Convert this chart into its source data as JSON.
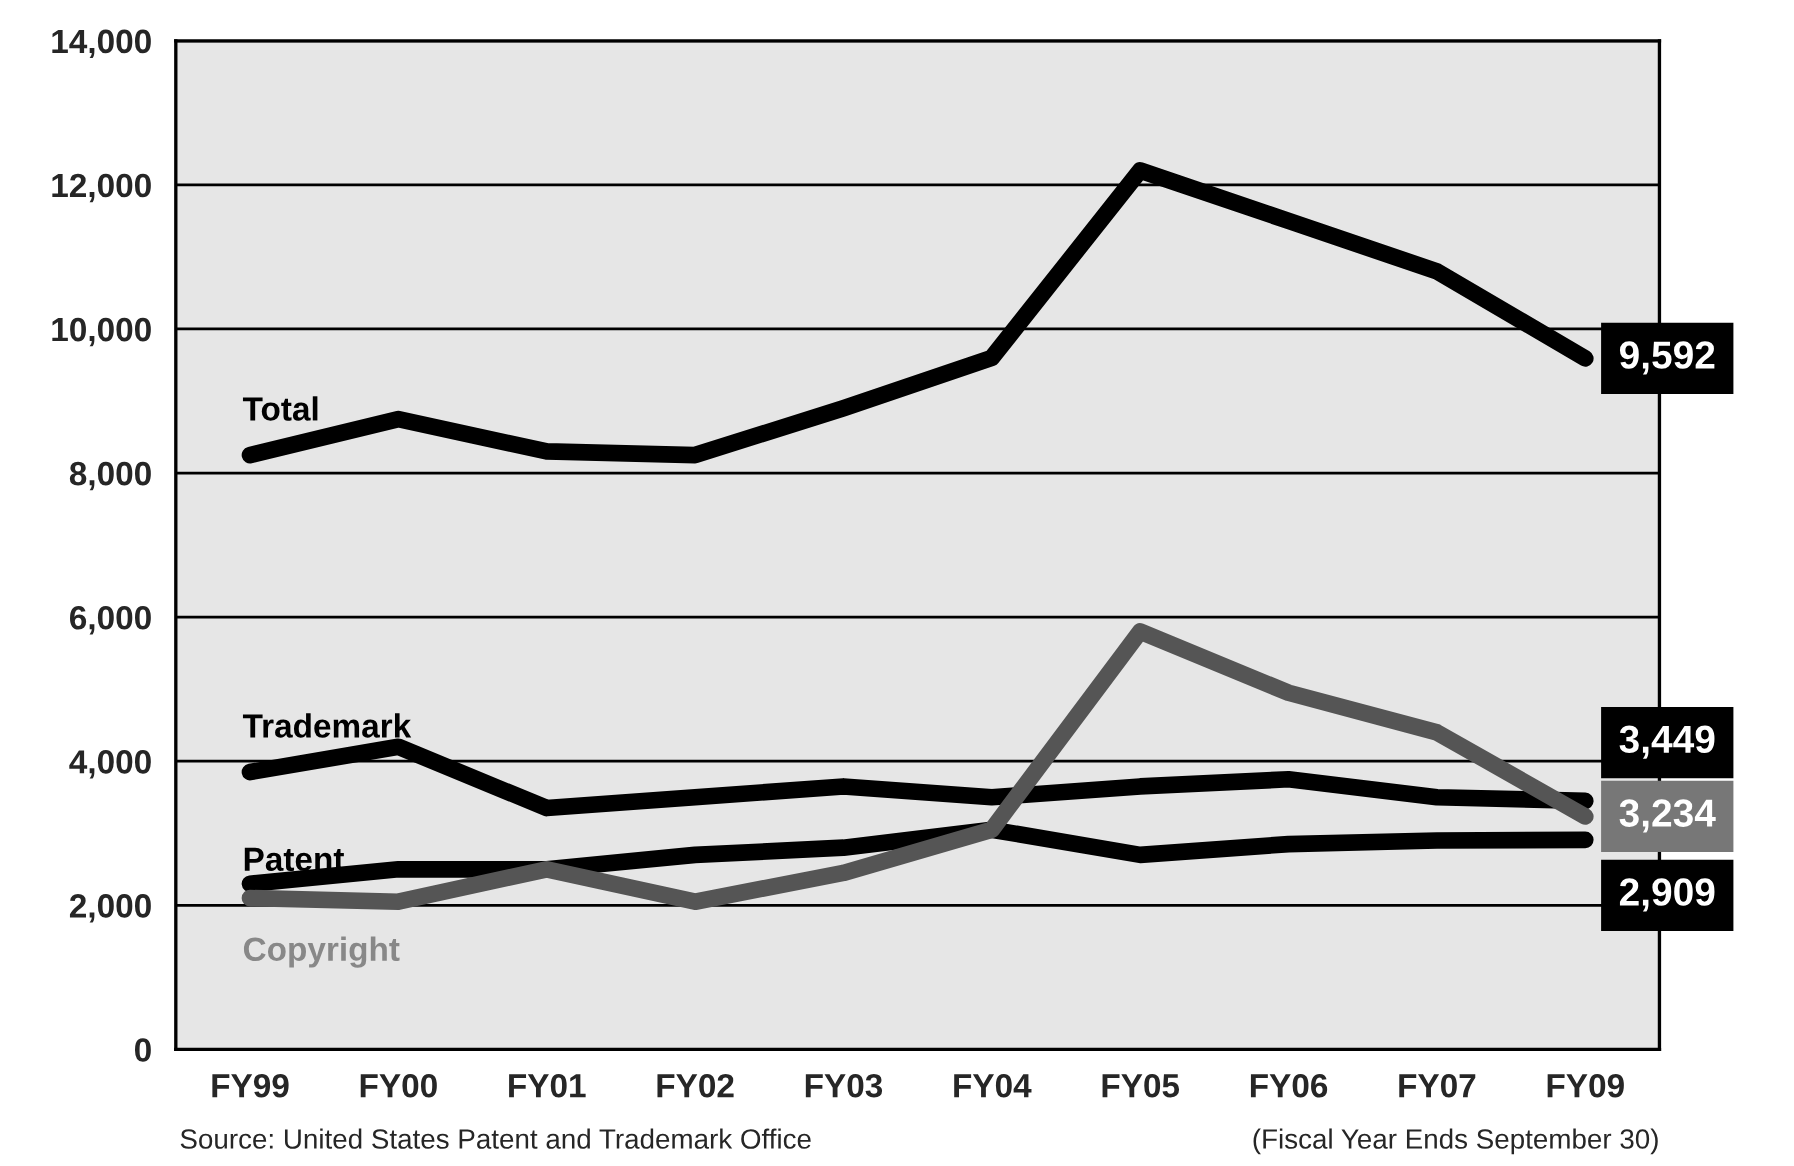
{
  "chart_data": {
    "type": "line",
    "categories": [
      "FY99",
      "FY00",
      "FY01",
      "FY02",
      "FY03",
      "FY04",
      "FY05",
      "FY06",
      "FY07",
      "FY09"
    ],
    "series": [
      {
        "name": "Total",
        "color": "#000000",
        "values": [
          8250,
          8750,
          8300,
          8250,
          8900,
          9600,
          12200,
          11500,
          10800,
          9592
        ],
        "value_labels": [
          null,
          null,
          null,
          null,
          null,
          null,
          null,
          null,
          null,
          "9,592"
        ]
      },
      {
        "name": "Trademark",
        "color": "#000000",
        "values": [
          3850,
          4200,
          3350,
          3500,
          3650,
          3500,
          3650,
          3750,
          3500,
          3449
        ],
        "value_labels": [
          null,
          null,
          null,
          null,
          null,
          null,
          null,
          null,
          null,
          "3,449"
        ]
      },
      {
        "name": "Patent",
        "color": "#000000",
        "values": [
          2300,
          2500,
          2500,
          2700,
          2800,
          3050,
          2700,
          2850,
          2900,
          2909
        ],
        "value_labels": [
          null,
          null,
          null,
          null,
          null,
          null,
          null,
          null,
          null,
          "2,909"
        ]
      },
      {
        "name": "Copyright",
        "color": "#555555",
        "values": [
          2100,
          2050,
          2500,
          2050,
          2450,
          3050,
          5800,
          4950,
          4400,
          3234
        ],
        "value_labels": [
          null,
          null,
          null,
          null,
          null,
          null,
          null,
          null,
          null,
          "3,234"
        ]
      }
    ],
    "ylim": [
      0,
      14000
    ],
    "yticks": [
      {
        "value": 0,
        "label": "0"
      },
      {
        "value": 2000,
        "label": "2,000"
      },
      {
        "value": 4000,
        "label": "4,000"
      },
      {
        "value": 6000,
        "label": "6,000"
      },
      {
        "value": 8000,
        "label": "8,000"
      },
      {
        "value": 10000,
        "label": "10,000"
      },
      {
        "value": 12000,
        "label": "12,000"
      },
      {
        "value": 14000,
        "label": "14,000"
      }
    ],
    "grid": "y",
    "legend": false,
    "marker": "none",
    "line_style": "solid",
    "annotations": [
      "Source: United States Patent and Trademark Office",
      "(Fiscal Year Ends September 30)"
    ]
  }
}
